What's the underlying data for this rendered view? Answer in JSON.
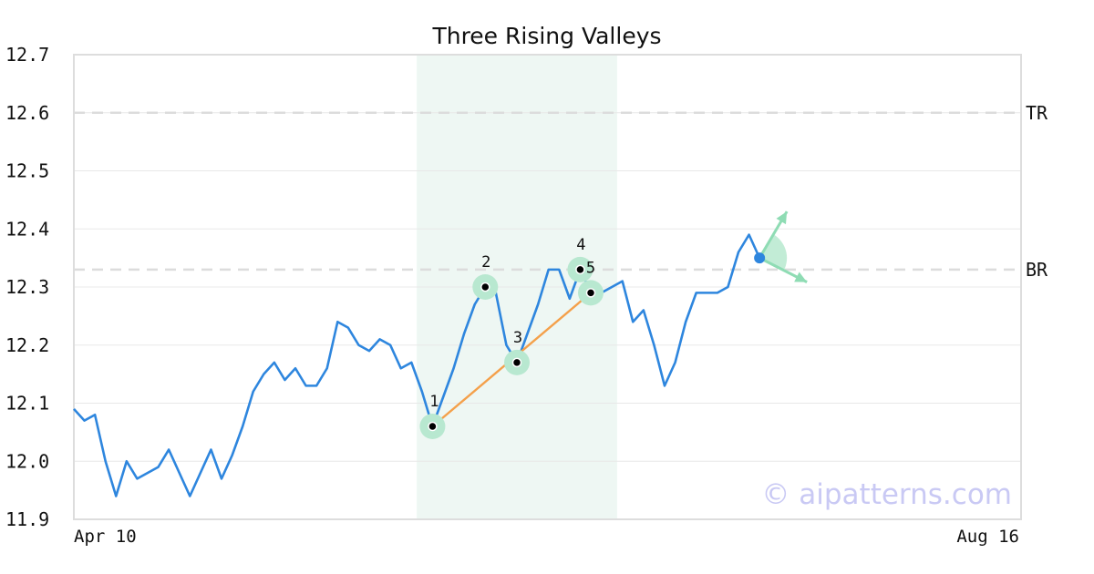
{
  "chart_data": {
    "type": "line",
    "title": "Three Rising Valleys",
    "ylim": [
      11.9,
      12.7
    ],
    "yticks": [
      "12.7",
      "12.6",
      "12.5",
      "12.4",
      "12.3",
      "12.2",
      "12.1",
      "12.0",
      "11.9"
    ],
    "x_start_label": "Apr 10",
    "x_end_label": "Aug 16",
    "grid": true,
    "series": [
      {
        "color": "#2e86de",
        "values": [
          12.09,
          12.07,
          12.08,
          12.0,
          11.94,
          12.0,
          11.97,
          11.98,
          11.99,
          12.02,
          11.98,
          11.94,
          11.98,
          12.02,
          11.97,
          12.01,
          12.06,
          12.12,
          12.15,
          12.17,
          12.14,
          12.16,
          12.13,
          12.13,
          12.16,
          12.24,
          12.23,
          12.2,
          12.19,
          12.21,
          12.2,
          12.16,
          12.17,
          12.12,
          12.06,
          12.11,
          12.16,
          12.22,
          12.27,
          12.3,
          12.29,
          12.2,
          12.17,
          12.22,
          12.27,
          12.33,
          12.33,
          12.28,
          12.33,
          12.29,
          12.29,
          12.3,
          12.31,
          12.24,
          12.26,
          12.2,
          12.13,
          12.17,
          12.24,
          12.29,
          12.29,
          12.29,
          12.3,
          12.36,
          12.39,
          12.35
        ]
      }
    ],
    "pattern_window": [
      32.5,
      51.5
    ],
    "pattern_points": [
      {
        "label": "1",
        "x": 34,
        "y": 12.06
      },
      {
        "label": "2",
        "x": 39,
        "y": 12.3
      },
      {
        "label": "3",
        "x": 42,
        "y": 12.17
      },
      {
        "label": "4",
        "x": 48,
        "y": 12.33
      },
      {
        "label": "5",
        "x": 49,
        "y": 12.29
      }
    ],
    "support_line": {
      "from": 0,
      "to": 4,
      "color": "#f4a04a"
    },
    "reference_lines": [
      {
        "label": "TR",
        "y": 12.6
      },
      {
        "label": "BR",
        "y": 12.33
      }
    ],
    "current_point": {
      "x": 65,
      "y": 12.35,
      "color": "#2e86de"
    },
    "projection": {
      "up_to": 12.43,
      "down_to": 12.31,
      "color": "#8fdcb4"
    },
    "watermark": "© aipatterns.com",
    "colors": {
      "band": "#eef7f3",
      "marker_halo": "#b8e8d0",
      "grid": "#e8e8e8",
      "frame": "#dddddd"
    }
  }
}
